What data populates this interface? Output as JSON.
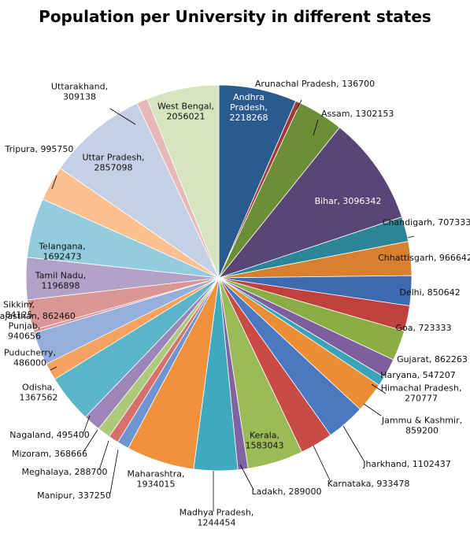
{
  "chart_data": {
    "type": "pie",
    "title": "Population per University in different states",
    "start_angle_deg": 0,
    "direction": "clockwise",
    "slices": [
      {
        "label": "Andhra Pradesh",
        "value": 2218268,
        "color": "#2b5a8f",
        "label_pos": "inside",
        "label_color": "light"
      },
      {
        "label": "Arunachal Pradesh",
        "value": 136700,
        "color": "#a1383a",
        "label_pos": "outside"
      },
      {
        "label": "Assam",
        "value": 1302153,
        "color": "#6b8e36",
        "label_pos": "outside"
      },
      {
        "label": "Bihar",
        "value": 3096342,
        "color": "#5a4577",
        "label_pos": "inside",
        "label_color": "light"
      },
      {
        "label": "Chandigarh",
        "value": 707333,
        "color": "#2c8596",
        "label_pos": "outside"
      },
      {
        "label": "Chhattisgarh",
        "value": 966642,
        "color": "#d9802e",
        "label_pos": "outside"
      },
      {
        "label": "Delhi",
        "value": 850642,
        "color": "#3d6ab0",
        "label_pos": "outside"
      },
      {
        "label": "Goa",
        "value": 723333,
        "color": "#c0413e",
        "label_pos": "outside"
      },
      {
        "label": "Gujarat",
        "value": 862263,
        "color": "#8aae45",
        "label_pos": "outside"
      },
      {
        "label": "Haryana",
        "value": 547207,
        "color": "#7d5f9f",
        "label_pos": "outside"
      },
      {
        "label": "Himachal Pradesh",
        "value": 270777,
        "color": "#39a3b7",
        "label_pos": "outside"
      },
      {
        "label": "Jammu & Kashmir",
        "value": 859200,
        "color": "#ea8d34",
        "label_pos": "outside"
      },
      {
        "label": "Jharkhand",
        "value": 1102437,
        "color": "#4a79c0",
        "label_pos": "outside"
      },
      {
        "label": "Karnataka",
        "value": 933478,
        "color": "#c84b46",
        "label_pos": "outside"
      },
      {
        "label": "Kerala",
        "value": 1583043,
        "color": "#9bbb59",
        "label_pos": "inside"
      },
      {
        "label": "Ladakh",
        "value": 289000,
        "color": "#8064a2",
        "label_pos": "outside"
      },
      {
        "label": "Madhya Pradesh",
        "value": 1244454,
        "color": "#3fa9c0",
        "label_pos": "outside"
      },
      {
        "label": "Maharashtra",
        "value": 1934015,
        "color": "#f0913d",
        "label_pos": "outside"
      },
      {
        "label": "Manipur",
        "value": 337250,
        "color": "#7094cf",
        "label_pos": "outside"
      },
      {
        "label": "Meghalaya",
        "value": 288700,
        "color": "#d5706d",
        "label_pos": "outside"
      },
      {
        "label": "Mizoram",
        "value": 368666,
        "color": "#afc97a",
        "label_pos": "outside"
      },
      {
        "label": "Nagaland",
        "value": 495400,
        "color": "#9c85b8",
        "label_pos": "outside"
      },
      {
        "label": "Odisha",
        "value": 1367562,
        "color": "#5cb4c9",
        "label_pos": "outside"
      },
      {
        "label": "Puducherry",
        "value": 486000,
        "color": "#f5a25f",
        "label_pos": "outside"
      },
      {
        "label": "Punjab",
        "value": 940656,
        "color": "#95aedb",
        "label_pos": "outside"
      },
      {
        "label": "Sikkim",
        "value": 84125,
        "color": "#de9391",
        "label_pos": "outside"
      },
      {
        "label": "Rajasthan",
        "value": 862460,
        "color": "#d99694",
        "label_pos": "outside"
      },
      {
        "label": "Tamil Nadu",
        "value": 1196898,
        "color": "#b3a2c7",
        "label_pos": "inside"
      },
      {
        "label": "Telangana",
        "value": 1692473,
        "color": "#93cddd",
        "label_pos": "inside"
      },
      {
        "label": "Tripura",
        "value": 995750,
        "color": "#fac090",
        "label_pos": "outside"
      },
      {
        "label": "Uttar Pradesh",
        "value": 2857098,
        "color": "#c5d0e4",
        "label_pos": "inside"
      },
      {
        "label": "Uttarakhand",
        "value": 309138,
        "color": "#e6b9b8",
        "label_pos": "outside"
      },
      {
        "label": "West Bengal",
        "value": 2056021,
        "color": "#d7e4bd",
        "label_pos": "inside"
      }
    ]
  }
}
